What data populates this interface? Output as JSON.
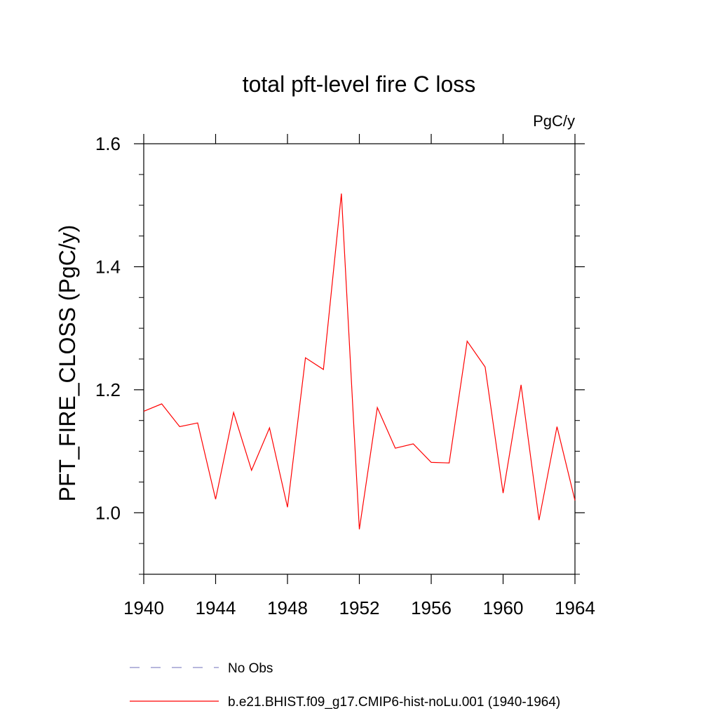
{
  "chart_data": {
    "type": "line",
    "title": "total pft-level fire C loss",
    "units_label": "PgC/y",
    "ylabel": "PFT_FIRE_CLOSS  (PgC/y)",
    "xlabel": "",
    "xlim": [
      1940,
      1964
    ],
    "ylim": [
      0.9,
      1.6
    ],
    "xticks": [
      1940,
      1944,
      1948,
      1952,
      1956,
      1960,
      1964
    ],
    "yticks": [
      "1.0",
      "1.2",
      "1.4",
      "1.6"
    ],
    "grid": false,
    "legend_position": "bottom",
    "series": [
      {
        "name": "No Obs",
        "style": "dashed",
        "color": "#8c8cc8",
        "x": [],
        "values": []
      },
      {
        "name": "b.e21.BHIST.f09_g17.CMIP6-hist-noLu.001 (1940-1964)",
        "style": "solid",
        "color": "#ff0000",
        "x": [
          1940,
          1941,
          1942,
          1943,
          1944,
          1945,
          1946,
          1947,
          1948,
          1949,
          1950,
          1951,
          1952,
          1953,
          1954,
          1955,
          1956,
          1957,
          1958,
          1959,
          1960,
          1961,
          1962,
          1963,
          1964
        ],
        "values": [
          1.165,
          1.177,
          1.14,
          1.146,
          1.022,
          1.163,
          1.069,
          1.138,
          1.009,
          1.252,
          1.233,
          1.519,
          0.973,
          1.171,
          1.105,
          1.112,
          1.082,
          1.081,
          1.279,
          1.237,
          1.032,
          1.208,
          0.988,
          1.14,
          1.02
        ]
      }
    ]
  }
}
